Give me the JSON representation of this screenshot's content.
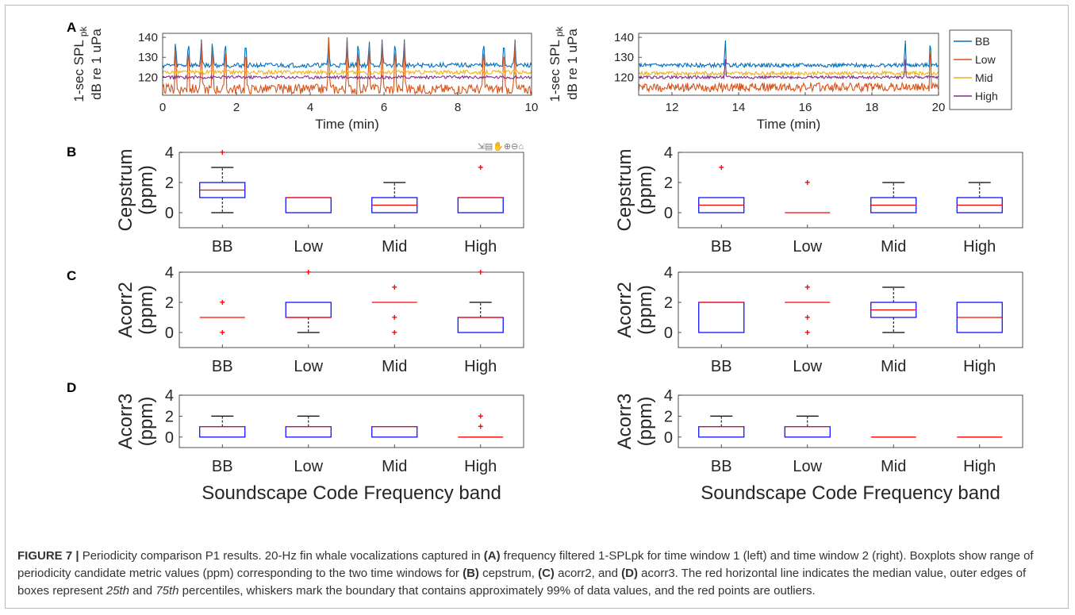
{
  "figure": {
    "panel_letters": [
      "A",
      "B",
      "C",
      "D"
    ],
    "toolbar_glyphs": "⇲▤✋⊕⊖⌂",
    "caption": {
      "label": "FIGURE 7 |",
      "p1": " Periodicity comparison P1 results. 20-Hz fin whale vocalizations captured in ",
      "b1": "(A)",
      "p2": " frequency filtered 1-SPLpk for time window 1 (left) and time window 2 (right). Boxplots show range of periodicity candidate metric values (ppm) corresponding to the two time windows for ",
      "b2": "(B)",
      "p3": " cepstrum, ",
      "b3": "(C)",
      "p4": " acorr2, and ",
      "b4": "(D)",
      "p5": " acorr3. The red horizontal line indicates the median value, outer edges of boxes represent ",
      "i1": "25th",
      "p6": " and ",
      "i2": "75th",
      "p7": " percentiles, whiskers mark the boundary that contains approximately 99% of data values, and the red points are outliers."
    }
  },
  "colors": {
    "BB": "#0072BD",
    "Low": "#D95319",
    "Mid": "#EDB120",
    "High": "#7E2F8E",
    "box": "#0000FF",
    "median": "#FF0000",
    "whisker": "#000000",
    "outlier": "#FF0000"
  },
  "chart_data": [
    {
      "id": "A-left",
      "type": "line",
      "ylabel": "1-sec SPL",
      "ylabel_sub": "pk",
      "ylabel2": "dB re 1 uPa",
      "xlabel": "Time (min)",
      "xlim": [
        0,
        10
      ],
      "ylim": [
        111,
        142
      ],
      "xticks": [
        0,
        2,
        4,
        6,
        8,
        10
      ],
      "yticks": [
        120,
        130,
        140
      ],
      "series": [
        {
          "name": "BB",
          "baseline": 126,
          "noise": 1.2,
          "peaks": [
            0.35,
            0.7,
            1.05,
            1.35,
            1.7,
            2.25,
            4.5,
            5.0,
            5.3,
            5.6,
            5.95,
            6.3,
            6.55,
            8.7,
            9.25,
            9.55
          ],
          "peak_value": 140
        },
        {
          "name": "Low",
          "baseline": 114,
          "noise": 2.5,
          "peaks": [
            0.35,
            0.7,
            1.05,
            1.35,
            1.7,
            2.25,
            4.5,
            5.0,
            5.3,
            5.6,
            5.95,
            6.3,
            6.55,
            8.7,
            9.25,
            9.55
          ],
          "peak_value": 140
        },
        {
          "name": "Mid",
          "baseline": 122.5,
          "noise": 1.0,
          "peaks": [],
          "peak_value": 0
        },
        {
          "name": "High",
          "baseline": 120,
          "noise": 0.8,
          "peaks": [],
          "peak_value": 0
        }
      ]
    },
    {
      "id": "A-right",
      "type": "line",
      "ylabel": "1-sec SPL",
      "ylabel_sub": "pk",
      "ylabel2": "dB re 1 uPa",
      "xlabel": "Time (min)",
      "xlim": [
        11,
        20
      ],
      "ylim": [
        111,
        142
      ],
      "xticks": [
        12,
        14,
        16,
        18,
        20
      ],
      "yticks": [
        120,
        130,
        140
      ],
      "legend": [
        "BB",
        "Low",
        "Mid",
        "High"
      ],
      "legend_position": "outside-right",
      "series": [
        {
          "name": "BB",
          "baseline": 126,
          "noise": 1.0,
          "peaks": [
            13.6,
            19.0,
            19.75
          ],
          "peak_value": 141
        },
        {
          "name": "Low",
          "baseline": 115,
          "noise": 2.2,
          "peaks": [
            19.75
          ],
          "peak_value": 141
        },
        {
          "name": "Mid",
          "baseline": 122,
          "noise": 0.9,
          "peaks": [],
          "peak_value": 0
        },
        {
          "name": "High",
          "baseline": 120,
          "noise": 0.7,
          "peaks": [
            13.6,
            19.0
          ],
          "peak_value": 131
        }
      ]
    },
    {
      "id": "B-left",
      "type": "box",
      "ylabel": "Cepstrum",
      "ylabel2": "(ppm)",
      "ylim": [
        -1,
        4
      ],
      "yticks": [
        0,
        2,
        4
      ],
      "categories": [
        "BB",
        "Low",
        "Mid",
        "High"
      ],
      "boxes": [
        {
          "q1": 1,
          "median": 1.5,
          "q3": 2,
          "whisk_lo": 0,
          "whisk_hi": 3,
          "outliers": [
            4
          ]
        },
        {
          "q1": 0,
          "median": 1,
          "q3": 1,
          "whisk_lo": 0,
          "whisk_hi": 1,
          "outliers": []
        },
        {
          "q1": 0,
          "median": 0.5,
          "q3": 1,
          "whisk_lo": 0,
          "whisk_hi": 2,
          "outliers": []
        },
        {
          "q1": 0,
          "median": 1,
          "q3": 1,
          "whisk_lo": 0,
          "whisk_hi": 1,
          "outliers": [
            3
          ]
        }
      ]
    },
    {
      "id": "B-right",
      "type": "box",
      "ylabel": "Cepstrum",
      "ylabel2": "(ppm)",
      "ylim": [
        -1,
        4
      ],
      "yticks": [
        0,
        2,
        4
      ],
      "categories": [
        "BB",
        "Low",
        "Mid",
        "High"
      ],
      "boxes": [
        {
          "q1": 0,
          "median": 0.5,
          "q3": 1,
          "whisk_lo": 0,
          "whisk_hi": 1,
          "outliers": [
            3
          ]
        },
        {
          "q1": 0,
          "median": 0,
          "q3": 0,
          "whisk_lo": 0,
          "whisk_hi": 0,
          "outliers": [
            2
          ]
        },
        {
          "q1": 0,
          "median": 0.5,
          "q3": 1,
          "whisk_lo": 0,
          "whisk_hi": 2,
          "outliers": []
        },
        {
          "q1": 0,
          "median": 0.5,
          "q3": 1,
          "whisk_lo": 0,
          "whisk_hi": 2,
          "outliers": []
        }
      ]
    },
    {
      "id": "C-left",
      "type": "box",
      "ylabel": "Acorr2",
      "ylabel2": "(ppm)",
      "ylim": [
        -1,
        4
      ],
      "yticks": [
        0,
        2,
        4
      ],
      "categories": [
        "BB",
        "Low",
        "Mid",
        "High"
      ],
      "boxes": [
        {
          "q1": 1,
          "median": 1,
          "q3": 1,
          "whisk_lo": 1,
          "whisk_hi": 1,
          "outliers": [
            0,
            2
          ]
        },
        {
          "q1": 1,
          "median": 1,
          "q3": 2,
          "whisk_lo": 0,
          "whisk_hi": 2,
          "outliers": [
            4
          ]
        },
        {
          "q1": 2,
          "median": 2,
          "q3": 2,
          "whisk_lo": 2,
          "whisk_hi": 2,
          "outliers": [
            0,
            1,
            3
          ]
        },
        {
          "q1": 0,
          "median": 1,
          "q3": 1,
          "whisk_lo": 0,
          "whisk_hi": 2,
          "outliers": [
            4
          ]
        }
      ]
    },
    {
      "id": "C-right",
      "type": "box",
      "ylabel": "Acorr2",
      "ylabel2": "(ppm)",
      "ylim": [
        -1,
        4
      ],
      "yticks": [
        0,
        2,
        4
      ],
      "categories": [
        "BB",
        "Low",
        "Mid",
        "High"
      ],
      "boxes": [
        {
          "q1": 0,
          "median": 2,
          "q3": 2,
          "whisk_lo": 0,
          "whisk_hi": 2,
          "outliers": []
        },
        {
          "q1": 2,
          "median": 2,
          "q3": 2,
          "whisk_lo": 2,
          "whisk_hi": 2,
          "outliers": [
            0,
            1,
            3
          ]
        },
        {
          "q1": 1,
          "median": 1.5,
          "q3": 2,
          "whisk_lo": 0,
          "whisk_hi": 3,
          "outliers": []
        },
        {
          "q1": 0,
          "median": 1,
          "q3": 2,
          "whisk_lo": 0,
          "whisk_hi": 2,
          "outliers": []
        }
      ]
    },
    {
      "id": "D-left",
      "type": "box",
      "ylabel": "Acorr3",
      "ylabel2": "(ppm)",
      "ylim": [
        -1,
        4
      ],
      "yticks": [
        0,
        2,
        4
      ],
      "categories": [
        "BB",
        "Low",
        "Mid",
        "High"
      ],
      "xlabel": "Soundscape Code Frequency band",
      "boxes": [
        {
          "q1": 0,
          "median": 1,
          "q3": 1,
          "whisk_lo": 0,
          "whisk_hi": 2,
          "outliers": []
        },
        {
          "q1": 0,
          "median": 1,
          "q3": 1,
          "whisk_lo": 0,
          "whisk_hi": 2,
          "outliers": []
        },
        {
          "q1": 0,
          "median": 1,
          "q3": 1,
          "whisk_lo": 0,
          "whisk_hi": 1,
          "outliers": []
        },
        {
          "q1": 0,
          "median": 0,
          "q3": 0,
          "whisk_lo": 0,
          "whisk_hi": 0,
          "outliers": [
            1,
            2
          ]
        }
      ]
    },
    {
      "id": "D-right",
      "type": "box",
      "ylabel": "Acorr3",
      "ylabel2": "(ppm)",
      "ylim": [
        -1,
        4
      ],
      "yticks": [
        0,
        2,
        4
      ],
      "categories": [
        "BB",
        "Low",
        "Mid",
        "High"
      ],
      "xlabel": "Soundscape Code Frequency band",
      "boxes": [
        {
          "q1": 0,
          "median": 1,
          "q3": 1,
          "whisk_lo": 0,
          "whisk_hi": 2,
          "outliers": []
        },
        {
          "q1": 0,
          "median": 1,
          "q3": 1,
          "whisk_lo": 0,
          "whisk_hi": 2,
          "outliers": []
        },
        {
          "q1": 0,
          "median": 0,
          "q3": 0,
          "whisk_lo": 0,
          "whisk_hi": 0,
          "outliers": []
        },
        {
          "q1": 0,
          "median": 0,
          "q3": 0,
          "whisk_lo": 0,
          "whisk_hi": 0,
          "outliers": []
        }
      ]
    }
  ]
}
